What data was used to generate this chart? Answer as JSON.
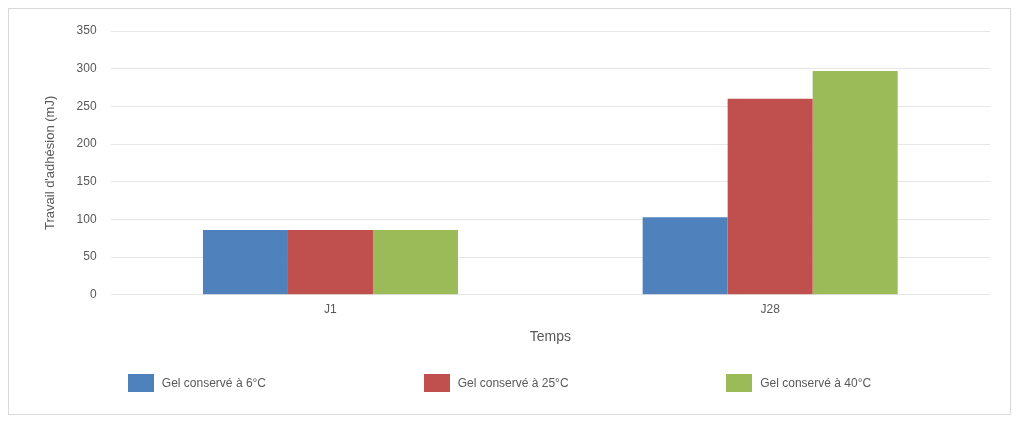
{
  "chart_data": {
    "type": "bar",
    "xlabel": "Temps",
    "ylabel": "Travail d'adhésion (mJ)",
    "categories": [
      "J1",
      "J28"
    ],
    "series": [
      {
        "name": "Gel conservé à 6°C",
        "color": "#4f81bd",
        "values": [
          86,
          103
        ]
      },
      {
        "name": "Gel conservé à 25°C",
        "color": "#c0504d",
        "values": [
          86,
          260
        ]
      },
      {
        "name": "Gel conservé à 40°C",
        "color": "#9bbb59",
        "values": [
          86,
          297
        ]
      }
    ],
    "ylim": [
      0,
      350
    ],
    "yticks": [
      0,
      50,
      100,
      150,
      200,
      250,
      300,
      350
    ],
    "grid": "y",
    "legend": "bottom"
  }
}
